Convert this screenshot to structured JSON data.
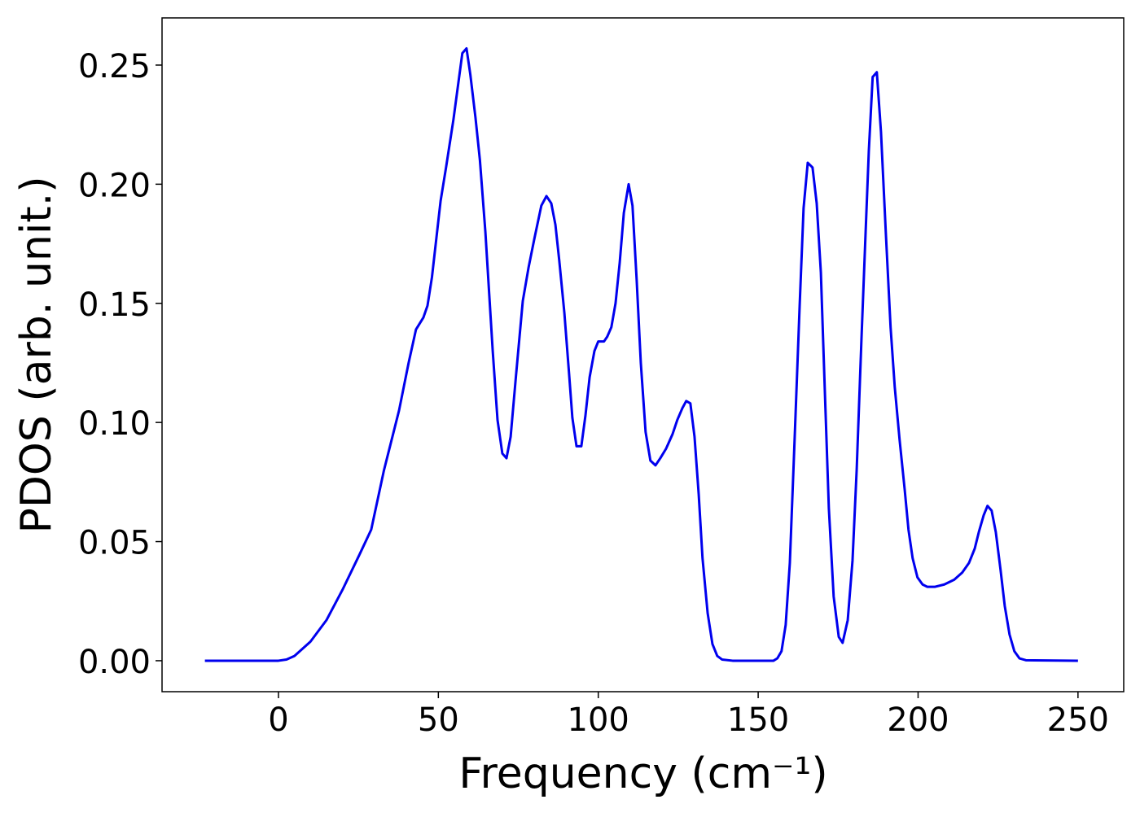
{
  "chart_data": {
    "type": "line",
    "xlabel": "Frequency (cm⁻¹)",
    "ylabel": "PDOS (arb. unit.)",
    "color": "#0000ee",
    "grid": false,
    "xlim": [
      -36.4,
      264.3
    ],
    "ylim": [
      -0.013,
      0.2698
    ],
    "xticks": [
      0,
      50,
      100,
      150,
      200,
      250
    ],
    "yticks": [
      {
        "value": 0,
        "label": "0.00"
      },
      0.05,
      {
        "value": 0.1,
        "label": "0.10"
      },
      0.15,
      {
        "value": 0.2,
        "label": "0.20"
      },
      0.25
    ],
    "x": [
      -23,
      0,
      2.5,
      5,
      10,
      15,
      20,
      25.5,
      29,
      33,
      37.7,
      40.7,
      43,
      45.3,
      46.6,
      48,
      50.7,
      52.4,
      54.7,
      56.3,
      57.5,
      58.8,
      60,
      61.6,
      63,
      64.7,
      67,
      68.5,
      70,
      71.3,
      72.6,
      74.3,
      76.4,
      78.2,
      80,
      82.2,
      83.8,
      85.3,
      86.6,
      87.8,
      89.4,
      90.9,
      91.9,
      93.2,
      94.7,
      96,
      97.3,
      98.8,
      100,
      101.8,
      102.8,
      104.1,
      105.4,
      106.7,
      108,
      109.5,
      110.7,
      112,
      113.3,
      114.8,
      116.3,
      117.9,
      119.4,
      121.2,
      123.2,
      124.7,
      126.3,
      127.5,
      128.8,
      130.1,
      131.4,
      132.6,
      134.2,
      135.7,
      137.2,
      138.7,
      142,
      154.8,
      156,
      157.3,
      158.6,
      159.9,
      161.4,
      163,
      164.2,
      165.5,
      167,
      168.3,
      169.6,
      170.8,
      172.1,
      173.6,
      175.2,
      176.4,
      178,
      179.5,
      180.8,
      182.3,
      183.6,
      184.6,
      185.8,
      187.1,
      188.4,
      189.9,
      191.4,
      192.7,
      194.2,
      195.8,
      197,
      198.3,
      199.8,
      201.4,
      202.9,
      205.2,
      208.2,
      211.3,
      213.8,
      215.9,
      217.7,
      219,
      220.5,
      221.7,
      223,
      224.3,
      225.8,
      227.1,
      228.6,
      230.1,
      231.7,
      233.7,
      250
    ],
    "values": [
      0,
      0,
      0.0005,
      0.002,
      0.008,
      0.017,
      0.0297,
      0.045,
      0.055,
      0.08,
      0.105,
      0.125,
      0.139,
      0.144,
      0.149,
      0.161,
      0.193,
      0.207,
      0.227,
      0.243,
      0.255,
      0.257,
      0.246,
      0.228,
      0.21,
      0.18,
      0.13,
      0.101,
      0.087,
      0.085,
      0.094,
      0.12,
      0.151,
      0.165,
      0.177,
      0.191,
      0.195,
      0.192,
      0.183,
      0.168,
      0.146,
      0.12,
      0.102,
      0.09,
      0.09,
      0.103,
      0.119,
      0.13,
      0.134,
      0.134,
      0.136,
      0.14,
      0.15,
      0.167,
      0.188,
      0.2,
      0.191,
      0.16,
      0.125,
      0.096,
      0.084,
      0.082,
      0.085,
      0.089,
      0.095,
      0.101,
      0.106,
      0.109,
      0.108,
      0.094,
      0.07,
      0.043,
      0.02,
      0.007,
      0.002,
      0.0005,
      0,
      0,
      0.001,
      0.004,
      0.015,
      0.041,
      0.093,
      0.15,
      0.19,
      0.209,
      0.207,
      0.192,
      0.163,
      0.115,
      0.064,
      0.027,
      0.01,
      0.0075,
      0.017,
      0.042,
      0.08,
      0.135,
      0.18,
      0.214,
      0.245,
      0.247,
      0.222,
      0.18,
      0.14,
      0.115,
      0.093,
      0.072,
      0.055,
      0.043,
      0.035,
      0.032,
      0.031,
      0.031,
      0.032,
      0.034,
      0.037,
      0.041,
      0.047,
      0.054,
      0.061,
      0.065,
      0.063,
      0.054,
      0.038,
      0.023,
      0.011,
      0.004,
      0.001,
      0.0002,
      0
    ]
  }
}
